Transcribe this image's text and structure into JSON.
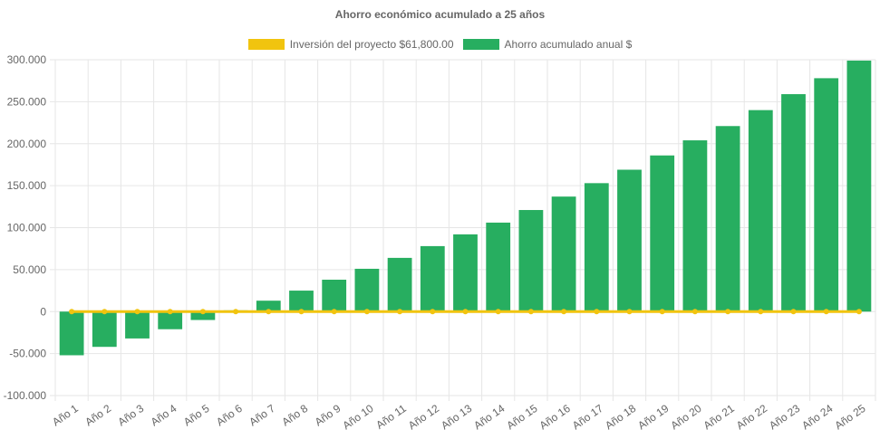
{
  "chart_data": {
    "type": "bar",
    "title": "Ahorro económico acumulado a 25 años",
    "xlabel": "",
    "ylabel": "",
    "categories": [
      "Año 1",
      "Año 2",
      "Año 3",
      "Año 4",
      "Año 5",
      "Año 6",
      "Año 7",
      "Año 8",
      "Año 9",
      "Año 10",
      "Año 11",
      "Año 12",
      "Año 13",
      "Año 14",
      "Año 15",
      "Año 16",
      "Año 17",
      "Año 18",
      "Año 19",
      "Año 20",
      "Año 21",
      "Año 22",
      "Año 23",
      "Año 24",
      "Año 25"
    ],
    "y_ticks": [
      "300.000",
      "250.000",
      "200.000",
      "150.000",
      "100.000",
      "50.000",
      "0",
      "-50.000",
      "-100.000"
    ],
    "y_tick_values": [
      300000,
      250000,
      200000,
      150000,
      100000,
      50000,
      0,
      -50000,
      -100000
    ],
    "ylim": [
      -100000,
      300000
    ],
    "grid": true,
    "legend_position": "top",
    "series": [
      {
        "name": "Inversión del proyecto $61,800.00",
        "type": "line",
        "color": "#f1c40f",
        "values": [
          0,
          0,
          0,
          0,
          0,
          0,
          0,
          0,
          0,
          0,
          0,
          0,
          0,
          0,
          0,
          0,
          0,
          0,
          0,
          0,
          0,
          0,
          0,
          0,
          0
        ]
      },
      {
        "name": "Ahorro acumulado anual $",
        "type": "bar",
        "color": "#27ae60",
        "values": [
          -52000,
          -42000,
          -32000,
          -21000,
          -10000,
          1500,
          13000,
          25000,
          38000,
          51000,
          64000,
          78000,
          92000,
          106000,
          121000,
          137000,
          153000,
          169000,
          186000,
          204000,
          221000,
          240000,
          259000,
          278000,
          299000
        ]
      }
    ]
  }
}
